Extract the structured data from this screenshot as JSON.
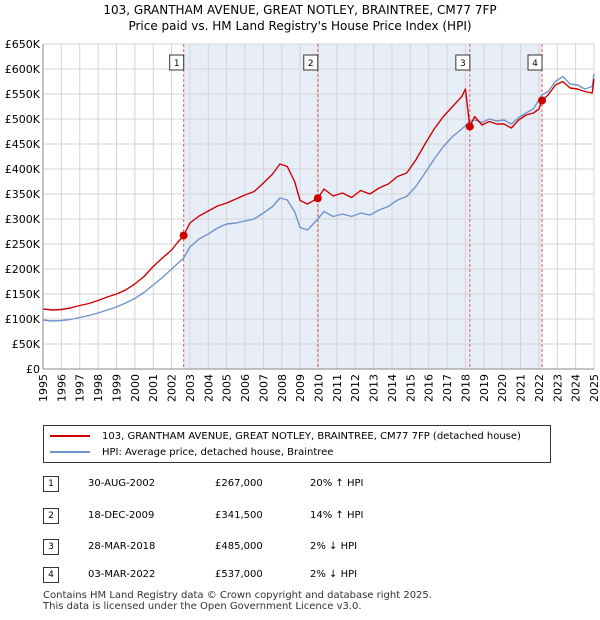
{
  "title_line1": "103, GRANTHAM AVENUE, GREAT NOTLEY, BRAINTREE, CM77 7FP",
  "title_line2": "Price paid vs. HM Land Registry's House Price Index (HPI)",
  "chart_data": {
    "type": "line",
    "ylim": [
      0,
      650000
    ],
    "xlim": [
      1995,
      2025
    ],
    "y_ticks": [
      {
        "value": 0,
        "label": "£0"
      },
      {
        "value": 50000,
        "label": "£50K"
      },
      {
        "value": 100000,
        "label": "£100K"
      },
      {
        "value": 150000,
        "label": "£150K"
      },
      {
        "value": 200000,
        "label": "£200K"
      },
      {
        "value": 250000,
        "label": "£250K"
      },
      {
        "value": 300000,
        "label": "£300K"
      },
      {
        "value": 350000,
        "label": "£350K"
      },
      {
        "value": 400000,
        "label": "£400K"
      },
      {
        "value": 450000,
        "label": "£450K"
      },
      {
        "value": 500000,
        "label": "£500K"
      },
      {
        "value": 550000,
        "label": "£550K"
      },
      {
        "value": 600000,
        "label": "£600K"
      },
      {
        "value": 650000,
        "label": "£650K"
      }
    ],
    "x_ticks": [
      "1995",
      "1996",
      "1997",
      "1998",
      "1999",
      "2000",
      "2001",
      "2002",
      "2003",
      "2004",
      "2005",
      "2006",
      "2007",
      "2008",
      "2009",
      "2010",
      "2011",
      "2012",
      "2013",
      "2014",
      "2015",
      "2016",
      "2017",
      "2018",
      "2019",
      "2020",
      "2021",
      "2022",
      "2023",
      "2024",
      "2025"
    ],
    "series": [
      {
        "name": "103, GRANTHAM AVENUE, GREAT NOTLEY, BRAINTREE, CM77 7FP (detached house)",
        "color": "#cc0000",
        "x": [
          1995.0,
          1995.5,
          1996.0,
          1996.5,
          1997.0,
          1997.5,
          1998.0,
          1998.5,
          1999.0,
          1999.5,
          2000.0,
          2000.5,
          2001.0,
          2001.5,
          2002.0,
          2002.3,
          2002.66,
          2003.0,
          2003.5,
          2004.0,
          2004.5,
          2005.0,
          2005.5,
          2006.0,
          2006.5,
          2007.0,
          2007.5,
          2007.9,
          2008.3,
          2008.7,
          2009.0,
          2009.4,
          2009.96,
          2010.3,
          2010.8,
          2011.3,
          2011.8,
          2012.3,
          2012.8,
          2013.3,
          2013.8,
          2014.3,
          2014.8,
          2015.3,
          2015.8,
          2016.3,
          2016.8,
          2017.3,
          2017.8,
          2018.0,
          2018.24,
          2018.5,
          2018.9,
          2019.3,
          2019.7,
          2020.1,
          2020.5,
          2020.9,
          2021.3,
          2021.7,
          2022.0,
          2022.17,
          2022.5,
          2022.9,
          2023.3,
          2023.7,
          2024.1,
          2024.5,
          2024.9,
          2025.0
        ],
        "values": [
          120000,
          118000,
          119000,
          122000,
          127000,
          131000,
          137000,
          144000,
          150000,
          158000,
          170000,
          185000,
          205000,
          222000,
          238000,
          252000,
          267000,
          292000,
          306000,
          316000,
          326000,
          332000,
          340000,
          348000,
          355000,
          372000,
          390000,
          410000,
          405000,
          375000,
          337000,
          330000,
          341500,
          360000,
          346000,
          352000,
          343000,
          357000,
          350000,
          362000,
          370000,
          385000,
          392000,
          418000,
          450000,
          480000,
          505000,
          525000,
          545000,
          560000,
          485000,
          505000,
          488000,
          495000,
          490000,
          490000,
          482000,
          498000,
          508000,
          512000,
          520000,
          537000,
          548000,
          568000,
          575000,
          562000,
          560000,
          555000,
          552000,
          580000
        ]
      },
      {
        "name": "HPI: Average price, detached house, Braintree",
        "color": "#6f94cd",
        "x": [
          1995.0,
          1995.5,
          1996.0,
          1996.5,
          1997.0,
          1997.5,
          1998.0,
          1998.5,
          1999.0,
          1999.5,
          2000.0,
          2000.5,
          2001.0,
          2001.5,
          2002.0,
          2002.66,
          2003.0,
          2003.5,
          2004.0,
          2004.5,
          2005.0,
          2005.5,
          2006.0,
          2006.5,
          2007.0,
          2007.5,
          2007.9,
          2008.3,
          2008.7,
          2009.0,
          2009.4,
          2009.96,
          2010.3,
          2010.8,
          2011.3,
          2011.8,
          2012.3,
          2012.8,
          2013.3,
          2013.8,
          2014.3,
          2014.8,
          2015.3,
          2015.8,
          2016.3,
          2016.8,
          2017.3,
          2017.8,
          2018.24,
          2018.5,
          2018.9,
          2019.3,
          2019.7,
          2020.1,
          2020.5,
          2020.9,
          2021.3,
          2021.7,
          2022.17,
          2022.5,
          2022.9,
          2023.3,
          2023.7,
          2024.1,
          2024.5,
          2024.9,
          2025.0
        ],
        "values": [
          98000,
          96000,
          97000,
          99000,
          103000,
          107000,
          112000,
          118000,
          124000,
          132000,
          141000,
          153000,
          168000,
          183000,
          200000,
          222000,
          244000,
          260000,
          270000,
          282000,
          290000,
          292000,
          296000,
          300000,
          312000,
          325000,
          342000,
          338000,
          315000,
          283000,
          278000,
          300000,
          315000,
          305000,
          310000,
          305000,
          312000,
          308000,
          318000,
          325000,
          338000,
          345000,
          365000,
          392000,
          420000,
          445000,
          465000,
          480000,
          495000,
          498000,
          493000,
          500000,
          496000,
          498000,
          490000,
          503000,
          512000,
          520000,
          548000,
          555000,
          575000,
          585000,
          570000,
          568000,
          560000,
          565000,
          590000
        ]
      }
    ],
    "transactions": [
      {
        "num": "1",
        "date": "30-AUG-2002",
        "price": "£267,000",
        "hpi": "20% ↑ HPI",
        "x": 2002.66,
        "value": 267000
      },
      {
        "num": "2",
        "date": "18-DEC-2009",
        "price": "£341,500",
        "hpi": "14% ↑ HPI",
        "x": 2009.96,
        "value": 341500
      },
      {
        "num": "3",
        "date": "28-MAR-2018",
        "price": "£485,000",
        "hpi": "2% ↓ HPI",
        "x": 2018.24,
        "value": 485000
      },
      {
        "num": "4",
        "date": "03-MAR-2022",
        "price": "£537,000",
        "hpi": "2% ↓ HPI",
        "x": 2022.17,
        "value": 537000
      }
    ]
  },
  "legend": {
    "property_label": "103, GRANTHAM AVENUE, GREAT NOTLEY, BRAINTREE, CM77 7FP (detached house)",
    "hpi_label": "HPI: Average price, detached house, Braintree"
  },
  "footer": {
    "line1": "Contains HM Land Registry data © Crown copyright and database right 2025.",
    "line2": "This data is licensed under the Open Government Licence v3.0."
  },
  "colors": {
    "property_line": "#cc0000",
    "hpi_line": "#6f94cd",
    "shade": "#e8eef8",
    "grid": "#d4d4d4",
    "vline": "#e06060"
  }
}
